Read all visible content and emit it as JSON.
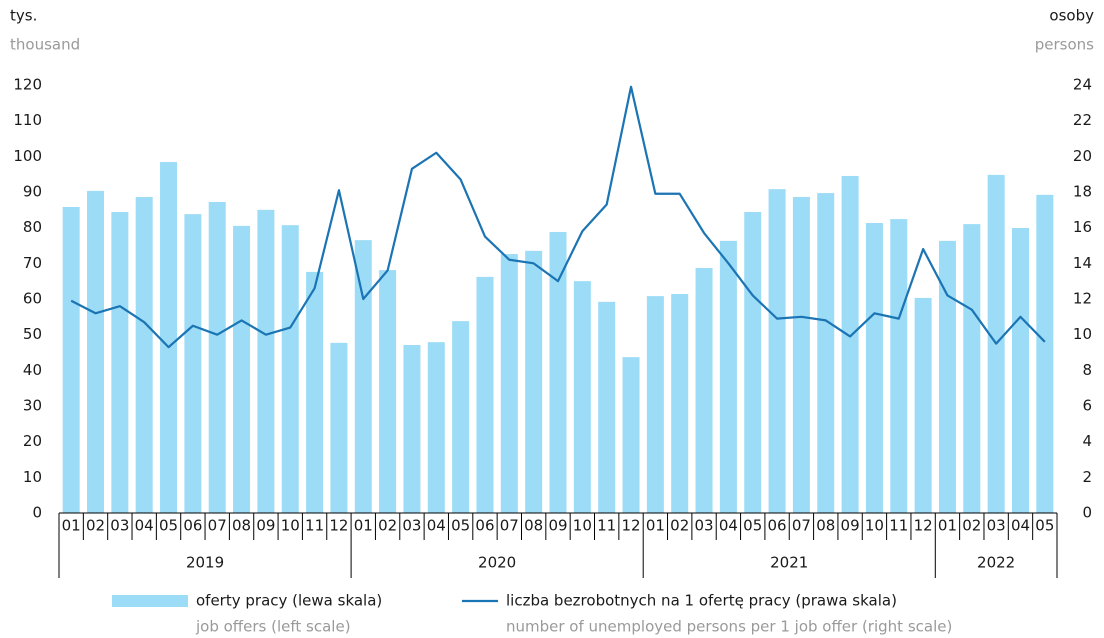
{
  "chart_data": {
    "type": "bar_line",
    "ylabel": "tys.",
    "ylabel_en": "thousand",
    "y2label": "osoby",
    "y2label_en": "persons",
    "category_groups": [
      {
        "label": "2019",
        "categories": [
          "01",
          "02",
          "03",
          "04",
          "05",
          "06",
          "07",
          "08",
          "09",
          "10",
          "11",
          "12"
        ]
      },
      {
        "label": "2020",
        "categories": [
          "01",
          "02",
          "03",
          "04",
          "05",
          "06",
          "07",
          "08",
          "09",
          "10",
          "11",
          "12"
        ]
      },
      {
        "label": "2021",
        "categories": [
          "01",
          "02",
          "03",
          "04",
          "05",
          "06",
          "07",
          "08",
          "09",
          "10",
          "11",
          "12"
        ]
      },
      {
        "label": "2022",
        "categories": [
          "01",
          "02",
          "03",
          "04",
          "05"
        ]
      }
    ],
    "series": [
      {
        "name": "oferty pracy (lewa skala)",
        "name_en": "job offers (left scale)",
        "type": "bar",
        "color": "#9cdcf6",
        "axis": "y",
        "values": [
          85.8,
          90.3,
          84.4,
          88.6,
          98.4,
          83.8,
          87.2,
          80.5,
          85.0,
          80.7,
          67.6,
          47.7,
          76.5,
          68.1,
          47.1,
          47.9,
          53.8,
          66.2,
          72.6,
          73.5,
          78.8,
          65.0,
          59.2,
          43.7,
          60.8,
          61.4,
          68.7,
          76.3,
          84.4,
          90.8,
          88.6,
          89.7,
          94.5,
          81.3,
          82.4,
          60.3,
          76.3,
          81.0,
          94.8,
          79.9,
          89.2
        ]
      },
      {
        "name": "liczba bezrobotnych na 1 ofertę pracy (prawa skala)",
        "name_en": "number of unemployed persons per 1 job offer (right scale)",
        "type": "line",
        "color": "#1b74b3",
        "axis": "y2",
        "values": [
          11.9,
          11.2,
          11.6,
          10.7,
          9.3,
          10.5,
          10.0,
          10.8,
          10.0,
          10.4,
          12.6,
          18.1,
          12.0,
          13.6,
          19.3,
          20.2,
          18.7,
          15.5,
          14.2,
          14.0,
          13.0,
          15.8,
          17.3,
          23.9,
          17.9,
          17.9,
          15.7,
          14.0,
          12.2,
          10.9,
          11.0,
          10.8,
          9.9,
          11.2,
          10.9,
          14.8,
          12.2,
          11.4,
          9.5,
          11.0,
          9.6
        ]
      }
    ],
    "ylim": [
      0,
      120
    ],
    "yticks": [
      0,
      10,
      20,
      30,
      40,
      50,
      60,
      70,
      80,
      90,
      100,
      110,
      120
    ],
    "y2lim": [
      0,
      24
    ],
    "y2ticks": [
      0,
      2,
      4,
      6,
      8,
      10,
      12,
      14,
      16,
      18,
      20,
      22,
      24
    ]
  }
}
